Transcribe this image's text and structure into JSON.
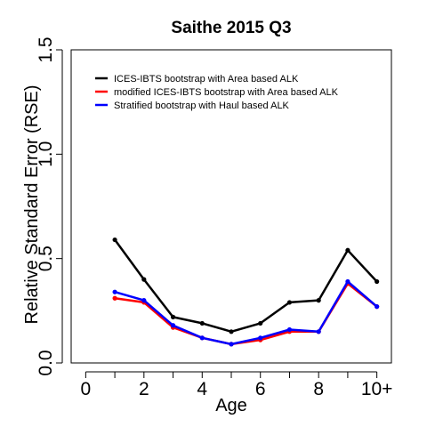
{
  "chart_data": {
    "type": "line",
    "title": "Saithe 2015 Q3",
    "xlabel": "Age",
    "ylabel": "Relative Standard Error (RSE)",
    "xlim": [
      -0.5,
      10.5
    ],
    "ylim": [
      0.0,
      1.5
    ],
    "x_ticks": [
      {
        "value": 0,
        "label": "0"
      },
      {
        "value": 1,
        "label": ""
      },
      {
        "value": 2,
        "label": "2"
      },
      {
        "value": 3,
        "label": ""
      },
      {
        "value": 4,
        "label": "4"
      },
      {
        "value": 5,
        "label": ""
      },
      {
        "value": 6,
        "label": "6"
      },
      {
        "value": 7,
        "label": ""
      },
      {
        "value": 8,
        "label": "8"
      },
      {
        "value": 9,
        "label": ""
      },
      {
        "value": 10,
        "label": "10+"
      }
    ],
    "y_ticks": [
      {
        "value": 0.0,
        "label": "0.0"
      },
      {
        "value": 0.5,
        "label": "0.5"
      },
      {
        "value": 1.0,
        "label": "1.0"
      },
      {
        "value": 1.5,
        "label": "1.5"
      }
    ],
    "x": [
      1,
      2,
      3,
      4,
      5,
      6,
      7,
      8,
      9,
      10
    ],
    "series": [
      {
        "name": "ICES-IBTS bootstrap with Area based ALK",
        "color": "#000000",
        "values": [
          0.59,
          0.4,
          0.22,
          0.19,
          0.15,
          0.19,
          0.29,
          0.3,
          0.54,
          0.39
        ]
      },
      {
        "name": "modified ICES-IBTS bootstrap with Area based ALK",
        "color": "#ff0000",
        "values": [
          0.31,
          0.29,
          0.17,
          0.12,
          0.09,
          0.11,
          0.15,
          0.15,
          0.38,
          0.27
        ]
      },
      {
        "name": "Stratified bootstrap with Haul based ALK",
        "color": "#0000ff",
        "values": [
          0.34,
          0.3,
          0.18,
          0.12,
          0.09,
          0.12,
          0.16,
          0.15,
          0.39,
          0.27
        ]
      }
    ],
    "legend_position": "top-left",
    "grid": false
  }
}
